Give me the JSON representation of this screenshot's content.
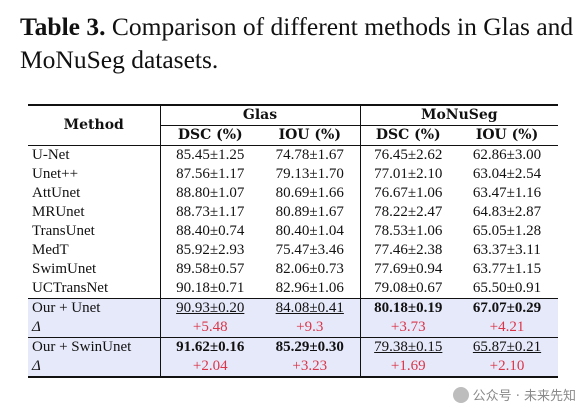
{
  "caption": {
    "label": "Table 3.",
    "text": " Comparison of different methods in Glas and MoNuSeg datasets."
  },
  "table": {
    "headers": {
      "method": "Method",
      "groups": [
        "Glas",
        "MoNuSeg"
      ],
      "metrics": [
        "DSC (%)",
        "IOU (%)",
        "DSC (%)",
        "IOU (%)"
      ]
    },
    "rows": [
      {
        "name": "U-Net",
        "values": [
          "85.45±1.25",
          "74.78±1.67",
          "76.45±2.62",
          "62.86±3.00"
        ]
      },
      {
        "name": "Unet++",
        "values": [
          "87.56±1.17",
          "79.13±1.70",
          "77.01±2.10",
          "63.04±2.54"
        ]
      },
      {
        "name": "AttUnet",
        "values": [
          "88.80±1.07",
          "80.69±1.66",
          "76.67±1.06",
          "63.47±1.16"
        ]
      },
      {
        "name": "MRUnet",
        "values": [
          "88.73±1.17",
          "80.89±1.67",
          "78.22±2.47",
          "64.83±2.87"
        ]
      },
      {
        "name": "TransUnet",
        "values": [
          "88.40±0.74",
          "80.40±1.04",
          "78.53±1.06",
          "65.05±1.28"
        ]
      },
      {
        "name": "MedT",
        "values": [
          "85.92±2.93",
          "75.47±3.46",
          "77.46±2.38",
          "63.37±3.11"
        ]
      },
      {
        "name": "SwimUnet",
        "values": [
          "89.58±0.57",
          "82.06±0.73",
          "77.69±0.94",
          "63.77±1.15"
        ]
      },
      {
        "name": "UCTransNet",
        "values": [
          "90.18±0.71",
          "82.96±1.06",
          "79.08±0.67",
          "65.50±0.91"
        ]
      }
    ],
    "ours": [
      {
        "name": "Our + Unet",
        "values": [
          "90.93±0.20",
          "84.08±0.41",
          "80.18±0.19",
          "67.07±0.29"
        ],
        "delta_label": "Δ",
        "deltas": [
          "+5.48",
          "+9.3",
          "+3.73",
          "+4.21"
        ]
      },
      {
        "name": "Our + SwinUnet",
        "values": [
          "91.62±0.16",
          "85.29±0.30",
          "79.38±0.15",
          "65.87±0.21"
        ],
        "delta_label": "Δ",
        "deltas": [
          "+2.04",
          "+3.23",
          "+1.69",
          "+2.10"
        ]
      }
    ]
  },
  "watermark": {
    "text": "公众号 · 未来先知",
    "icon": "wechat-icon"
  }
}
